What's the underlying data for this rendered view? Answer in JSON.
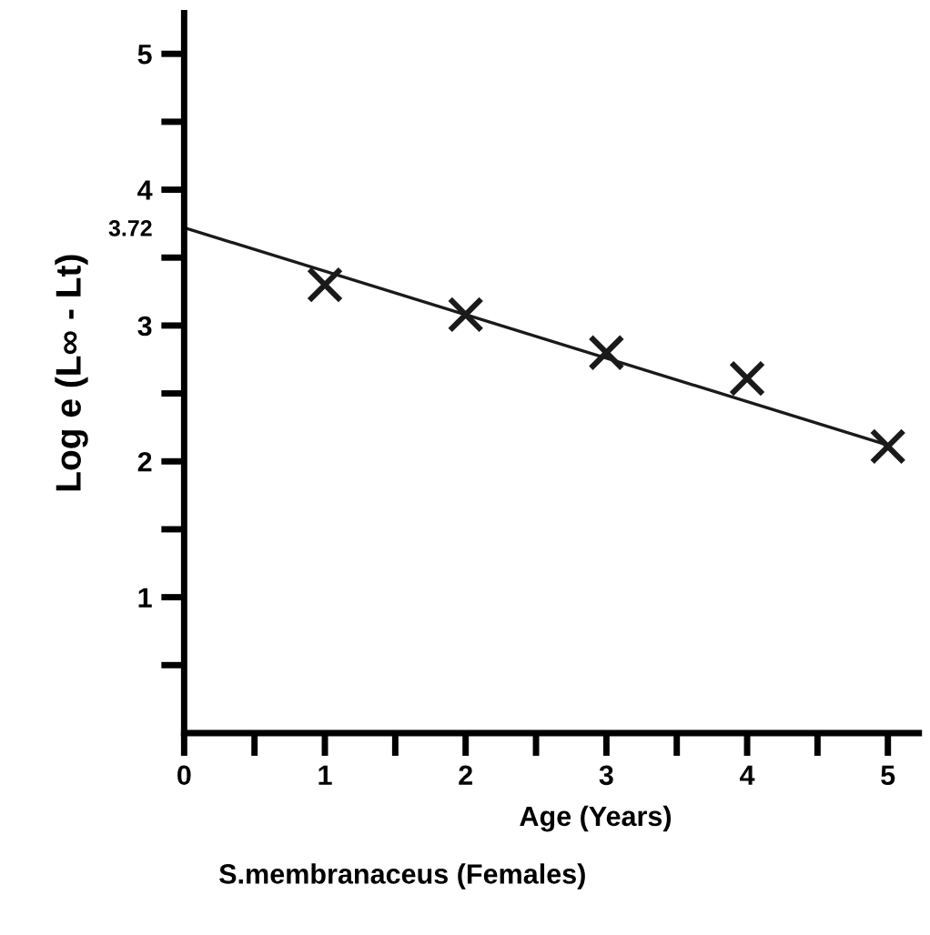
{
  "chart_data": {
    "type": "scatter",
    "title": "S.membranaceus (Females)",
    "xlabel": "Age (Years)",
    "ylabel": "Log e (L∞ - Lt)",
    "x": [
      1,
      2,
      3,
      4,
      5
    ],
    "series": [
      {
        "color": "#1a1a1a",
        "marker": "cross",
        "values": [
          3.3,
          3.08,
          2.8,
          2.61,
          2.11
        ]
      },
      {
        "type": "line",
        "color": "#1a1a1a",
        "marker": "none",
        "x": [
          0,
          5
        ],
        "values": [
          3.72,
          2.12
        ]
      }
    ],
    "xlim": [
      0,
      5.22
    ],
    "ylim": [
      0,
      5.3
    ],
    "xticks": [
      0,
      {
        "value": 0.5,
        "label": null
      },
      1,
      {
        "value": 1.5,
        "label": null
      },
      2,
      {
        "value": 2.5,
        "label": null
      },
      3,
      {
        "value": 3.5,
        "label": null
      },
      4,
      {
        "value": 4.5,
        "label": null
      },
      5
    ],
    "yticks": [
      {
        "value": 0.5,
        "label": null
      },
      1,
      {
        "value": 1.5,
        "label": null
      },
      2,
      {
        "value": 2.5,
        "label": null
      },
      3,
      {
        "value": 3.5,
        "label": null
      },
      {
        "value": 3.72,
        "label": "3.72"
      },
      4,
      {
        "value": 4.5,
        "label": null
      },
      5
    ],
    "grid": false,
    "legend": false
  }
}
